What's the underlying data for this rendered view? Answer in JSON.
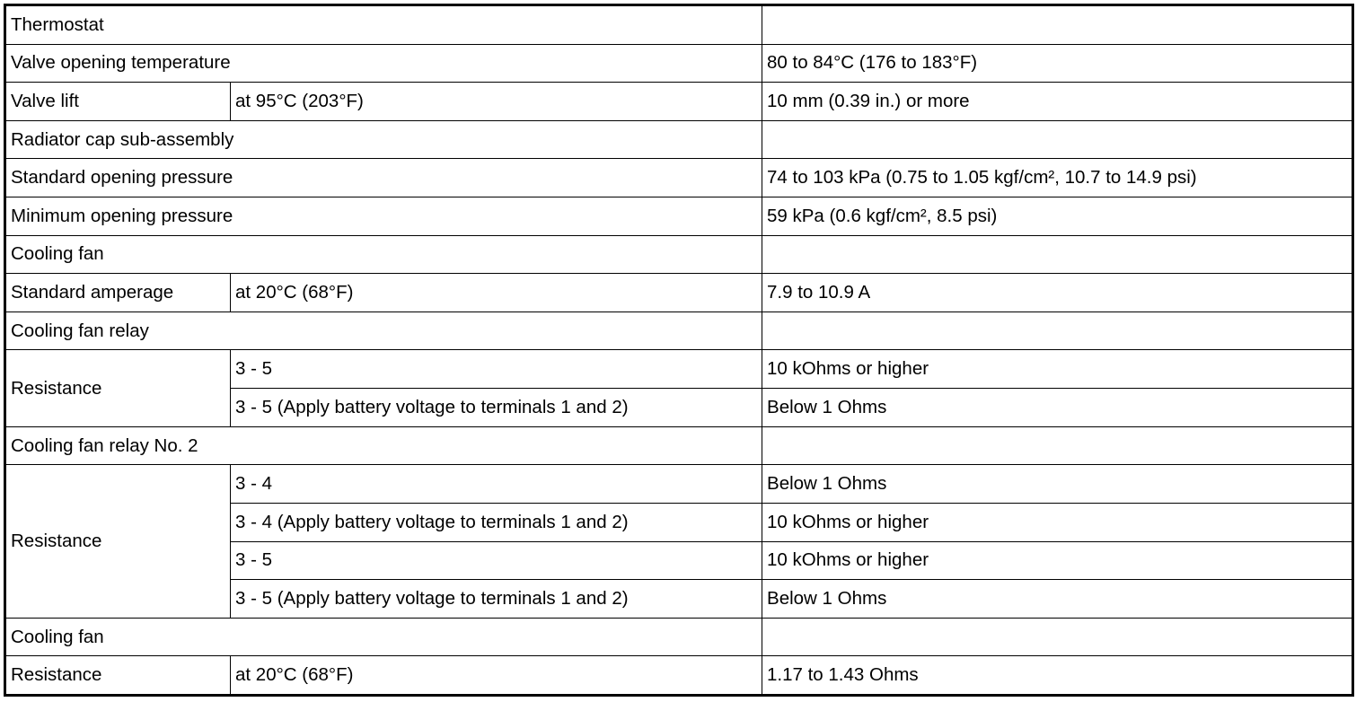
{
  "table": {
    "rows": [
      [
        {
          "text": "Thermostat",
          "colspan": 2
        },
        {
          "text": ""
        }
      ],
      [
        {
          "text": "Valve opening temperature",
          "colspan": 2
        },
        {
          "text": "80 to 84°C (176 to 183°F)"
        }
      ],
      [
        {
          "text": "Valve lift"
        },
        {
          "text": "at 95°C (203°F)"
        },
        {
          "text": "10 mm (0.39 in.) or more"
        }
      ],
      [
        {
          "text": "Radiator cap sub-assembly",
          "colspan": 2
        },
        {
          "text": ""
        }
      ],
      [
        {
          "text": "Standard opening pressure",
          "colspan": 2
        },
        {
          "text": "74 to 103 kPa (0.75 to 1.05 kgf/cm², 10.7 to 14.9 psi)"
        }
      ],
      [
        {
          "text": "Minimum opening pressure",
          "colspan": 2
        },
        {
          "text": "59 kPa (0.6 kgf/cm², 8.5 psi)"
        }
      ],
      [
        {
          "text": "Cooling fan",
          "colspan": 2
        },
        {
          "text": ""
        }
      ],
      [
        {
          "text": "Standard amperage"
        },
        {
          "text": "at 20°C (68°F)"
        },
        {
          "text": "7.9 to 10.9 A"
        }
      ],
      [
        {
          "text": "Cooling fan relay",
          "colspan": 2
        },
        {
          "text": ""
        }
      ],
      [
        {
          "text": "Resistance",
          "rowspan": 2
        },
        {
          "text": "3 - 5"
        },
        {
          "text": "10 kOhms or higher"
        }
      ],
      [
        {
          "text": "3 - 5 (Apply battery voltage to terminals 1 and 2)"
        },
        {
          "text": "Below 1 Ohms"
        }
      ],
      [
        {
          "text": "Cooling fan relay No. 2",
          "colspan": 2
        },
        {
          "text": ""
        }
      ],
      [
        {
          "text": "Resistance",
          "rowspan": 4
        },
        {
          "text": "3 - 4"
        },
        {
          "text": "Below 1 Ohms"
        }
      ],
      [
        {
          "text": "3 - 4 (Apply battery voltage to terminals 1 and 2)"
        },
        {
          "text": "10 kOhms or higher"
        }
      ],
      [
        {
          "text": "3 - 5"
        },
        {
          "text": "10 kOhms or higher"
        }
      ],
      [
        {
          "text": "3 - 5 (Apply battery voltage to terminals 1 and 2)"
        },
        {
          "text": "Below 1 Ohms"
        }
      ],
      [
        {
          "text": "Cooling fan",
          "colspan": 2
        },
        {
          "text": ""
        }
      ],
      [
        {
          "text": "Resistance"
        },
        {
          "text": "at 20°C (68°F)"
        },
        {
          "text": "1.17 to 1.43 Ohms"
        }
      ]
    ]
  }
}
